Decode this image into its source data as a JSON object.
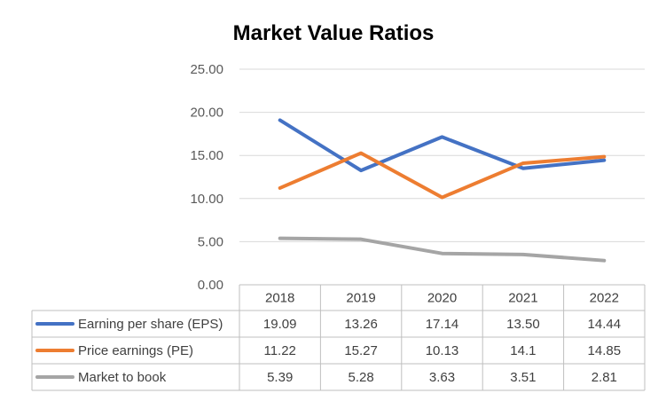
{
  "chart_data": {
    "type": "line",
    "title": "Market Value Ratios",
    "categories": [
      "2018",
      "2019",
      "2020",
      "2021",
      "2022"
    ],
    "ylim": [
      0,
      25
    ],
    "yticks": [
      "0.00",
      "5.00",
      "10.00",
      "15.00",
      "20.00",
      "25.00"
    ],
    "ytick_values": [
      0,
      5,
      10,
      15,
      20,
      25
    ],
    "grid": true,
    "legend": "data-table-below",
    "series": [
      {
        "name": "Earning per share (EPS)",
        "color": "#4472C4",
        "values": [
          19.09,
          13.26,
          17.14,
          13.5,
          14.44
        ],
        "labels": [
          "19.09",
          "13.26",
          "17.14",
          "13.50",
          "14.44"
        ]
      },
      {
        "name": "Price earnings (PE)",
        "color": "#ED7D31",
        "values": [
          11.22,
          15.27,
          10.13,
          14.1,
          14.85
        ],
        "labels": [
          "11.22",
          "15.27",
          "10.13",
          "14.1",
          "14.85"
        ]
      },
      {
        "name": "Market to book",
        "color": "#A5A5A5",
        "values": [
          5.39,
          5.28,
          3.63,
          3.51,
          2.81
        ],
        "labels": [
          "5.39",
          "5.28",
          "3.63",
          "3.51",
          "2.81"
        ]
      }
    ]
  }
}
